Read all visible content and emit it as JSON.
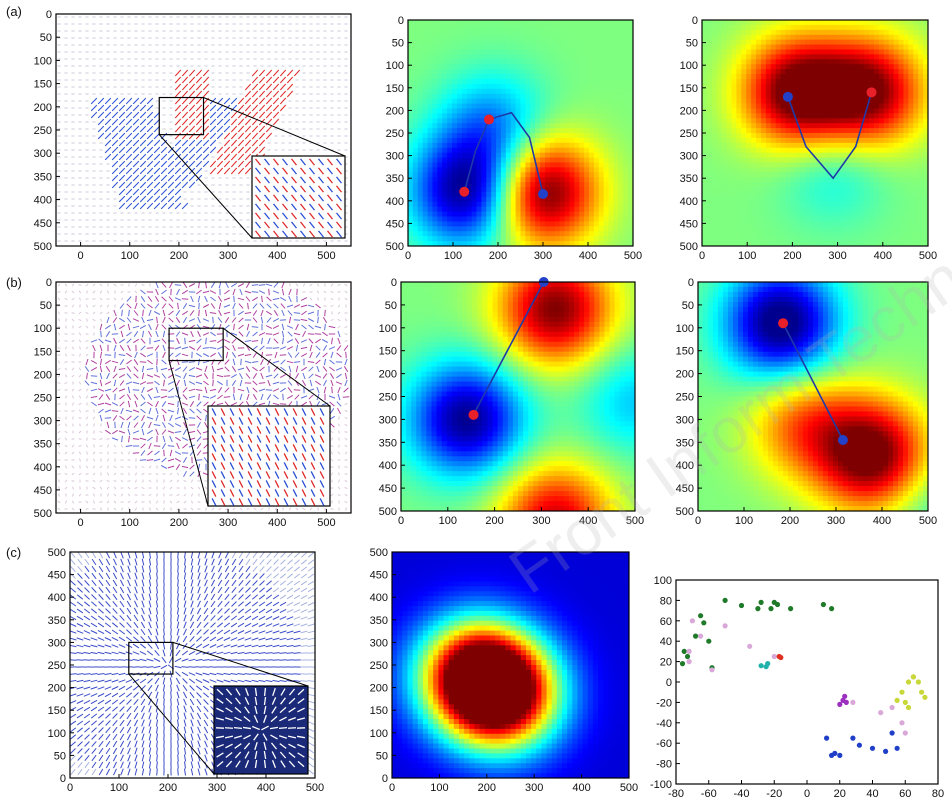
{
  "panel_labels": [
    "(a)",
    "(b)",
    "(c)"
  ],
  "watermark": "Front Inform Technol",
  "colors": {
    "blue_vector": "#2a4fd6",
    "red_vector": "#e02a2a",
    "frame": "#000000"
  },
  "chart_data": [
    {
      "id": "a1",
      "type": "quiver",
      "xlim": [
        -50,
        550
      ],
      "ylim": [
        0,
        500
      ],
      "y_inverted": true,
      "xticks": [
        0,
        100,
        200,
        300,
        400,
        500
      ],
      "yticks": [
        0,
        50,
        100,
        150,
        200,
        250,
        300,
        350,
        400,
        450,
        500
      ],
      "zoom_box": [
        160,
        180,
        250,
        260
      ],
      "has_inset": true
    },
    {
      "id": "a2",
      "type": "heatmap",
      "colormap": "jet",
      "xlim": [
        0,
        500
      ],
      "ylim": [
        0,
        500
      ],
      "y_inverted": true,
      "xticks": [
        0,
        100,
        200,
        300,
        400,
        500
      ],
      "yticks": [
        0,
        50,
        100,
        150,
        200,
        250,
        300,
        350,
        400,
        450,
        500
      ],
      "field": [
        {
          "x": 130,
          "y": 380,
          "w": -1.0
        },
        {
          "x": 190,
          "y": 240,
          "w": -0.5
        },
        {
          "x": 300,
          "y": 380,
          "w": 1.1
        }
      ],
      "points": [
        {
          "x": 125,
          "y": 380,
          "color": "red"
        },
        {
          "x": 180,
          "y": 220,
          "color": "red"
        },
        {
          "x": 300,
          "y": 385,
          "color": "blue"
        }
      ],
      "path": [
        [
          125,
          380
        ],
        [
          150,
          290
        ],
        [
          180,
          220
        ],
        [
          230,
          205
        ],
        [
          270,
          260
        ],
        [
          300,
          385
        ]
      ]
    },
    {
      "id": "a3",
      "type": "heatmap",
      "colormap": "jet",
      "xlim": [
        0,
        500
      ],
      "ylim": [
        0,
        500
      ],
      "y_inverted": true,
      "xticks": [
        0,
        100,
        200,
        300,
        400,
        500
      ],
      "yticks": [
        0,
        50,
        100,
        150,
        200,
        250,
        300,
        350,
        400,
        450,
        500
      ],
      "field": [
        {
          "x": 210,
          "y": 160,
          "w": 1.1
        },
        {
          "x": 370,
          "y": 160,
          "w": 1.0
        },
        {
          "x": 290,
          "y": 330,
          "w": -0.25
        }
      ],
      "points": [
        {
          "x": 190,
          "y": 170,
          "color": "blue"
        },
        {
          "x": 375,
          "y": 160,
          "color": "red"
        }
      ],
      "path": [
        [
          190,
          170
        ],
        [
          230,
          280
        ],
        [
          290,
          350
        ],
        [
          340,
          280
        ],
        [
          375,
          160
        ]
      ]
    },
    {
      "id": "b1",
      "type": "quiver",
      "xlim": [
        -50,
        550
      ],
      "ylim": [
        0,
        500
      ],
      "y_inverted": true,
      "xticks": [
        0,
        100,
        200,
        300,
        400,
        500
      ],
      "yticks": [
        0,
        50,
        100,
        150,
        200,
        250,
        300,
        350,
        400,
        450,
        500
      ],
      "zoom_box": [
        180,
        100,
        290,
        170
      ],
      "has_inset": true
    },
    {
      "id": "b2",
      "type": "heatmap",
      "colormap": "jet",
      "xlim": [
        0,
        500
      ],
      "ylim": [
        0,
        500
      ],
      "y_inverted": true,
      "xticks": [
        0,
        100,
        200,
        300,
        400,
        500
      ],
      "yticks": [
        0,
        50,
        100,
        150,
        200,
        250,
        300,
        350,
        400,
        450,
        500
      ],
      "field": [
        {
          "x": 330,
          "y": 60,
          "w": 1.0
        },
        {
          "x": 140,
          "y": 300,
          "w": -1.0
        },
        {
          "x": 330,
          "y": 520,
          "w": 0.85
        },
        {
          "x": 500,
          "y": 260,
          "w": -0.35
        }
      ],
      "points": [
        {
          "x": 305,
          "y": 0,
          "color": "blue"
        },
        {
          "x": 155,
          "y": 290,
          "color": "red"
        }
      ],
      "path": [
        [
          305,
          0
        ],
        [
          155,
          290
        ]
      ]
    },
    {
      "id": "b3",
      "type": "heatmap",
      "colormap": "jet",
      "xlim": [
        0,
        500
      ],
      "ylim": [
        0,
        500
      ],
      "y_inverted": true,
      "xticks": [
        0,
        100,
        200,
        300,
        400,
        500
      ],
      "yticks": [
        0,
        50,
        100,
        150,
        200,
        250,
        300,
        350,
        400,
        450,
        500
      ],
      "field": [
        {
          "x": 180,
          "y": 90,
          "w": -1.1
        },
        {
          "x": 380,
          "y": 380,
          "w": 1.1
        },
        {
          "x": 230,
          "y": 310,
          "w": 0.55
        },
        {
          "x": 500,
          "y": 480,
          "w": -0.2
        }
      ],
      "points": [
        {
          "x": 185,
          "y": 90,
          "color": "red"
        },
        {
          "x": 315,
          "y": 345,
          "color": "blue"
        }
      ],
      "path": [
        [
          185,
          90
        ],
        [
          315,
          345
        ]
      ]
    },
    {
      "id": "c1",
      "type": "quiver",
      "xlim": [
        0,
        500
      ],
      "ylim": [
        0,
        500
      ],
      "y_inverted": false,
      "xticks": [
        0,
        100,
        200,
        300,
        400,
        500
      ],
      "yticks": [
        0,
        50,
        100,
        150,
        200,
        250,
        300,
        350,
        400,
        450,
        500
      ],
      "zoom_box": [
        120,
        230,
        210,
        300
      ],
      "has_inset": true
    },
    {
      "id": "c2",
      "type": "heatmap",
      "colormap": "jet",
      "xlim": [
        0,
        500
      ],
      "ylim": [
        0,
        500
      ],
      "y_inverted": false,
      "xticks": [
        0,
        100,
        200,
        300,
        400,
        500
      ],
      "yticks": [
        0,
        50,
        100,
        150,
        200,
        250,
        300,
        350,
        400,
        450,
        500
      ],
      "field": [
        {
          "x": 175,
          "y": 230,
          "w": 0.9
        },
        {
          "x": 235,
          "y": 180,
          "w": 0.9
        }
      ],
      "points": [],
      "path": []
    },
    {
      "id": "c3",
      "type": "scatter",
      "xlim": [
        -80,
        80
      ],
      "ylim": [
        -100,
        100
      ],
      "y_inverted": false,
      "xticks": [
        -80,
        -60,
        -40,
        -20,
        0,
        20,
        40,
        60,
        80
      ],
      "yticks": [
        -100,
        -80,
        -60,
        -40,
        -20,
        0,
        20,
        40,
        60,
        80,
        100
      ],
      "series": [
        {
          "color": "#1f7a2a",
          "x": [
            -50,
            -40,
            -30,
            -28,
            -22,
            -20,
            -18,
            -10,
            10,
            15,
            -65,
            -63,
            -68,
            -60,
            -75,
            -73,
            -76,
            -58
          ],
          "y": [
            80,
            75,
            72,
            78,
            72,
            78,
            76,
            72,
            76,
            72,
            65,
            58,
            45,
            40,
            30,
            25,
            18,
            14
          ]
        },
        {
          "color": "#d9a8d9",
          "x": [
            -72,
            -72,
            -70,
            -65,
            -58,
            -50,
            -35,
            -20,
            28,
            45,
            52,
            58,
            60,
            65
          ],
          "y": [
            20,
            30,
            60,
            45,
            12,
            55,
            35,
            25,
            -20,
            -30,
            -25,
            -40,
            -50,
            5
          ]
        },
        {
          "color": "#20b2aa",
          "x": [
            -28,
            -25,
            -24
          ],
          "y": [
            16,
            15,
            18
          ]
        },
        {
          "color": "#e03020",
          "x": [
            -17,
            -16
          ],
          "y": [
            25,
            24
          ]
        },
        {
          "color": "#9b30c0",
          "x": [
            20,
            22,
            23,
            24
          ],
          "y": [
            -22,
            -18,
            -14,
            -20
          ]
        },
        {
          "color": "#c8d838",
          "x": [
            55,
            58,
            62,
            65,
            68,
            70,
            60,
            62,
            72
          ],
          "y": [
            -18,
            -10,
            0,
            5,
            0,
            -10,
            -20,
            -25,
            -15
          ]
        },
        {
          "color": "#1f3fc8",
          "x": [
            12,
            15,
            17,
            20,
            28,
            32,
            40,
            48,
            52,
            55
          ],
          "y": [
            -55,
            -72,
            -70,
            -72,
            -55,
            -62,
            -65,
            -68,
            -50,
            -65
          ]
        }
      ]
    }
  ]
}
